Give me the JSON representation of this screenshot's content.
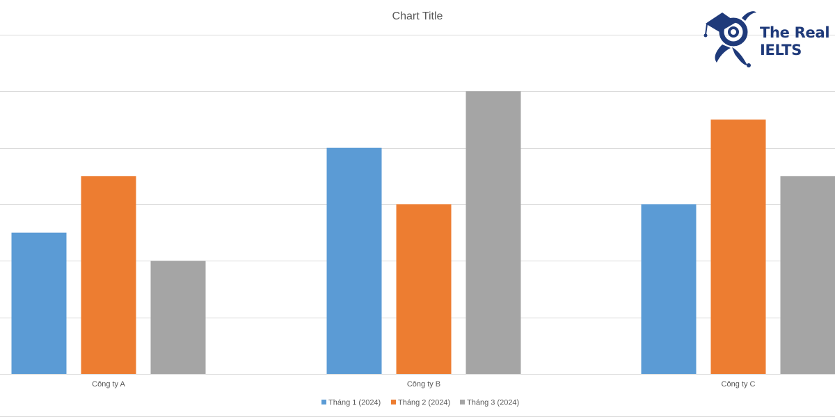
{
  "logo": {
    "line1": "The Real",
    "line2": "IELTS",
    "color": "#1f3a7a"
  },
  "chart_data": {
    "type": "bar",
    "title": "Chart Title",
    "categories": [
      "Công ty A",
      "Công ty B",
      "Công ty C"
    ],
    "series": [
      {
        "name": "Tháng 1 (2024)",
        "color": "#5b9bd5",
        "values": [
          25,
          40,
          30
        ]
      },
      {
        "name": "Tháng 2 (2024)",
        "color": "#ed7d31",
        "values": [
          35,
          30,
          45
        ]
      },
      {
        "name": "Tháng 3 (2024)",
        "color": "#a5a5a5",
        "values": [
          20,
          50,
          35
        ]
      }
    ],
    "ylim": [
      0,
      60
    ],
    "grid": true,
    "legend": "bottom",
    "xlabel": "",
    "ylabel": ""
  }
}
